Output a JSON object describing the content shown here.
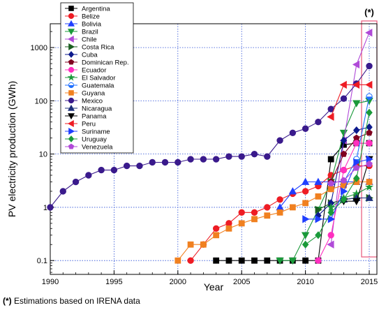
{
  "chart_data": {
    "type": "line",
    "ylabel": "PV electricity production (GWh)",
    "xlabel": "Year",
    "ylog": true,
    "xlim": [
      1990,
      2015.6
    ],
    "ylim": [
      0.055,
      2800
    ],
    "xticks": [
      1990,
      1995,
      2000,
      2005,
      2010,
      2015
    ],
    "yticks": [
      {
        "v": 0.1,
        "label": "0.1"
      },
      {
        "v": 1,
        "label": "1"
      },
      {
        "v": 10,
        "label": "10"
      },
      {
        "v": 100,
        "label": "100"
      },
      {
        "v": 1000,
        "label": "1000"
      }
    ],
    "grid": true,
    "legend_position": "top-left",
    "annotation": "(*)",
    "highlight_x": 2015,
    "footnote": {
      "mark": "(*)",
      "text": " Estimations based on IRENA data"
    },
    "series": [
      {
        "name": "Argentina",
        "color": "#000000",
        "marker": "square",
        "points": [
          [
            2003,
            0.1
          ],
          [
            2004,
            0.1
          ],
          [
            2005,
            0.1
          ],
          [
            2006,
            0.1
          ],
          [
            2007,
            0.1
          ],
          [
            2008,
            0.1
          ],
          [
            2009,
            0.1
          ],
          [
            2010,
            0.1
          ],
          [
            2011,
            0.1
          ],
          [
            2012,
            8
          ],
          [
            2013,
            15
          ],
          [
            2014,
            16
          ],
          [
            2015,
            16
          ]
        ]
      },
      {
        "name": "Belize",
        "color": "#ee1c24",
        "marker": "circle",
        "points": [
          [
            2001,
            0.1
          ],
          [
            2002,
            0.2
          ],
          [
            2003,
            0.4
          ],
          [
            2004,
            0.5
          ],
          [
            2005,
            0.8
          ],
          [
            2006,
            0.8
          ],
          [
            2007,
            1.0
          ],
          [
            2008,
            1.4
          ],
          [
            2009,
            1.8
          ],
          [
            2010,
            2.0
          ],
          [
            2011,
            2.5
          ],
          [
            2012,
            4
          ],
          [
            2013,
            5
          ],
          [
            2014,
            6
          ],
          [
            2015,
            6
          ]
        ]
      },
      {
        "name": "Bolivia",
        "color": "#1f3fff",
        "marker": "triangle-up",
        "points": [
          [
            2008,
            1.0
          ],
          [
            2009,
            2.0
          ],
          [
            2010,
            3.0
          ],
          [
            2011,
            3.0
          ],
          [
            2012,
            3.0
          ],
          [
            2013,
            3.0
          ],
          [
            2014,
            3.0
          ],
          [
            2015,
            3.0
          ]
        ]
      },
      {
        "name": "Brazil",
        "color": "#1a9a3a",
        "marker": "triangle-down",
        "points": [
          [
            2008,
            0.1
          ],
          [
            2009,
            0.1
          ],
          [
            2010,
            0.3
          ],
          [
            2011,
            0.9
          ],
          [
            2012,
            3
          ],
          [
            2013,
            25
          ],
          [
            2014,
            90
          ],
          [
            2015,
            100
          ]
        ]
      },
      {
        "name": "Chile",
        "color": "#b04ad8",
        "marker": "triangle-left",
        "points": [
          [
            2012,
            0.2
          ],
          [
            2013,
            18
          ],
          [
            2014,
            480
          ],
          [
            2015,
            1900
          ]
        ]
      },
      {
        "name": "Costa Rica",
        "color": "#1b5e20",
        "marker": "triangle-right",
        "points": [
          [
            2011,
            0.9
          ],
          [
            2012,
            1.2
          ],
          [
            2013,
            1.4
          ],
          [
            2014,
            1.5
          ],
          [
            2015,
            1.5
          ]
        ]
      },
      {
        "name": "Cuba",
        "color": "#0d1a8c",
        "marker": "diamond",
        "points": [
          [
            2011,
            0.7
          ],
          [
            2012,
            1.2
          ],
          [
            2013,
            18
          ],
          [
            2014,
            28
          ],
          [
            2015,
            32
          ]
        ]
      },
      {
        "name": "Dominican Rep.",
        "color": "#800020",
        "marker": "pentagon",
        "points": [
          [
            2012,
            3
          ],
          [
            2013,
            10
          ],
          [
            2014,
            20
          ],
          [
            2015,
            25
          ]
        ]
      },
      {
        "name": "Ecuador",
        "color": "#ff2fbf",
        "marker": "circle",
        "points": [
          [
            2011,
            0.1
          ],
          [
            2012,
            0.3
          ],
          [
            2013,
            5
          ],
          [
            2014,
            16
          ],
          [
            2015,
            16
          ]
        ]
      },
      {
        "name": "El Salvador",
        "color": "#1a9a3a",
        "marker": "star",
        "points": [
          [
            2012,
            1.0
          ],
          [
            2013,
            1.5
          ],
          [
            2014,
            1.8
          ],
          [
            2015,
            2.4
          ]
        ]
      },
      {
        "name": "Guatemala",
        "color": "#1f6fff",
        "marker": "circle-half",
        "points": [
          [
            2013,
            3
          ],
          [
            2014,
            8
          ],
          [
            2015,
            120
          ]
        ]
      },
      {
        "name": "Guyana",
        "color": "#f08020",
        "marker": "square",
        "points": [
          [
            2000,
            0.1
          ],
          [
            2001,
            0.2
          ],
          [
            2002,
            0.2
          ],
          [
            2003,
            0.3
          ],
          [
            2004,
            0.4
          ],
          [
            2005,
            0.5
          ],
          [
            2006,
            0.6
          ],
          [
            2007,
            0.7
          ],
          [
            2008,
            0.8
          ],
          [
            2009,
            1.0
          ],
          [
            2010,
            1.2
          ],
          [
            2011,
            1.6
          ],
          [
            2012,
            2.2
          ],
          [
            2013,
            2.6
          ],
          [
            2014,
            3.0
          ],
          [
            2015,
            3.0
          ]
        ]
      },
      {
        "name": "Mexico",
        "color": "#3a1a8c",
        "marker": "circle",
        "points": [
          [
            1990,
            1.0
          ],
          [
            1991,
            2
          ],
          [
            1992,
            3
          ],
          [
            1993,
            4
          ],
          [
            1994,
            5
          ],
          [
            1995,
            5
          ],
          [
            1996,
            6
          ],
          [
            1997,
            6
          ],
          [
            1998,
            7
          ],
          [
            1999,
            7
          ],
          [
            2000,
            7
          ],
          [
            2001,
            8
          ],
          [
            2002,
            8
          ],
          [
            2003,
            8
          ],
          [
            2004,
            9
          ],
          [
            2005,
            9
          ],
          [
            2006,
            10
          ],
          [
            2007,
            9
          ],
          [
            2008,
            18
          ],
          [
            2009,
            25
          ],
          [
            2010,
            30
          ],
          [
            2011,
            40
          ],
          [
            2012,
            70
          ],
          [
            2013,
            110
          ],
          [
            2014,
            210
          ],
          [
            2015,
            450
          ]
        ]
      },
      {
        "name": "Nicaragua",
        "color": "#1c2f7a",
        "marker": "triangle-up",
        "points": [
          [
            2013,
            1.4
          ],
          [
            2014,
            1.5
          ],
          [
            2015,
            1.5
          ]
        ]
      },
      {
        "name": "Panama",
        "color": "#000000",
        "marker": "triangle-down",
        "points": [
          [
            2013,
            1.3
          ],
          [
            2014,
            1.3
          ],
          [
            2015,
            8
          ]
        ]
      },
      {
        "name": "Peru",
        "color": "#ee1c24",
        "marker": "triangle-left",
        "points": [
          [
            2012,
            50
          ],
          [
            2013,
            200
          ],
          [
            2014,
            200
          ],
          [
            2015,
            200
          ]
        ]
      },
      {
        "name": "Suriname",
        "color": "#1f3fff",
        "marker": "triangle-right",
        "points": [
          [
            2010,
            0.6
          ],
          [
            2011,
            0.6
          ],
          [
            2012,
            0.6
          ],
          [
            2013,
            2
          ],
          [
            2014,
            7
          ],
          [
            2015,
            8
          ]
        ]
      },
      {
        "name": "Uruguay",
        "color": "#1a9a3a",
        "marker": "diamond",
        "points": [
          [
            2010,
            0.2
          ],
          [
            2011,
            0.3
          ],
          [
            2012,
            0.8
          ],
          [
            2013,
            1.4
          ],
          [
            2014,
            3.5
          ],
          [
            2015,
            60
          ]
        ]
      },
      {
        "name": "Venezuela",
        "color": "#b04ad8",
        "marker": "pentagon",
        "points": [
          [
            2012,
            2.8
          ],
          [
            2013,
            3.2
          ],
          [
            2014,
            5.5
          ],
          [
            2015,
            6.5
          ]
        ]
      }
    ]
  }
}
